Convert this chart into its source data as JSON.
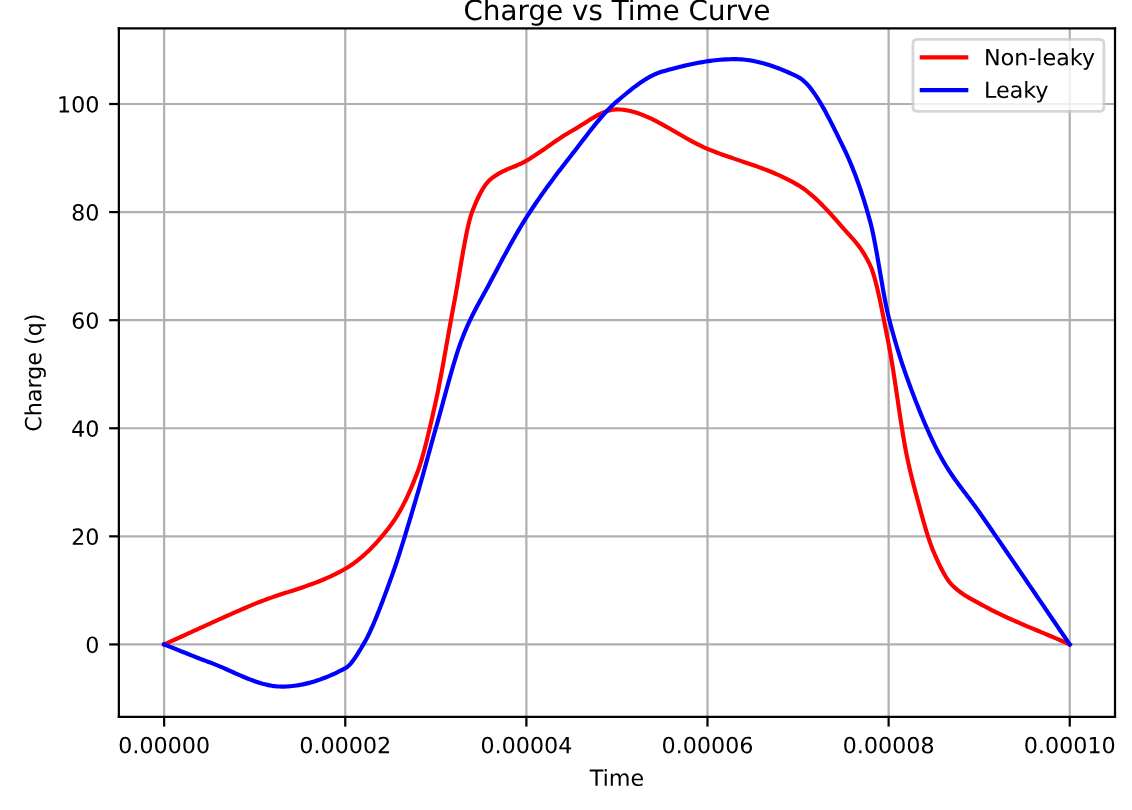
{
  "chart_data": {
    "type": "line",
    "title": "Charge vs Time Curve",
    "xlabel": "Time",
    "ylabel": "Charge (q)",
    "xlim": [
      -5e-06,
      0.000105
    ],
    "ylim": [
      -13.4,
      114
    ],
    "xticks": [
      {
        "value": 0,
        "label": "0.00000"
      },
      {
        "value": 2e-05,
        "label": "0.00002"
      },
      {
        "value": 4e-05,
        "label": "0.00004"
      },
      {
        "value": 6e-05,
        "label": "0.00006"
      },
      {
        "value": 8e-05,
        "label": "0.00008"
      },
      {
        "value": 0.0001,
        "label": "0.00010"
      }
    ],
    "yticks": [
      0,
      20,
      40,
      60,
      80,
      100
    ],
    "grid": true,
    "legend": "top right",
    "line_style": "solid",
    "marker": "none",
    "series": [
      {
        "name": "Non-leaky",
        "color": "#ff0000",
        "x": [
          0,
          1e-05,
          2e-05,
          2.5e-05,
          2.8e-05,
          3e-05,
          3.2e-05,
          3.4e-05,
          3.6e-05,
          4e-05,
          4.5e-05,
          5e-05,
          6e-05,
          7e-05,
          7.5e-05,
          7.8e-05,
          8e-05,
          8.2e-05,
          8.3e-05,
          8.5e-05,
          8.7e-05,
          9e-05,
          0.0001
        ],
        "values": [
          0,
          7.5,
          14,
          22,
          32,
          45,
          63,
          80,
          86,
          89.5,
          95,
          99,
          91.7,
          85,
          77,
          70,
          55.6,
          35,
          28,
          17,
          11,
          7.6,
          0
        ]
      },
      {
        "name": "Leaky",
        "color": "#0000ff",
        "x": [
          0,
          5e-06,
          1.3e-05,
          2e-05,
          2.2e-05,
          2.5e-05,
          2.8e-05,
          3e-05,
          3.3e-05,
          3.6e-05,
          4e-05,
          4.5e-05,
          5e-05,
          5.5e-05,
          6.3e-05,
          7e-05,
          7.5e-05,
          7.8e-05,
          8e-05,
          8.3e-05,
          8.6e-05,
          9e-05,
          0.0001
        ],
        "values": [
          0,
          -3.3,
          -7.8,
          -4.4,
          0,
          12,
          28,
          40,
          57,
          67,
          79,
          90.6,
          100.5,
          106,
          108.3,
          105,
          92,
          78,
          60.6,
          45,
          34,
          24.5,
          0
        ]
      }
    ]
  }
}
